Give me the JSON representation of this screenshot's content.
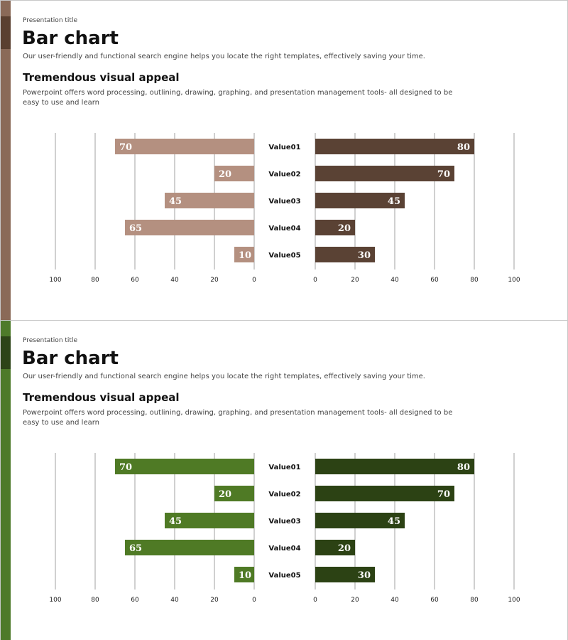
{
  "slides": [
    {
      "presentation_title": "Presentation title",
      "title": "Bar chart",
      "subtitle": "Our user-friendly and functional search engine helps you locate the right templates, effectively saving your time.",
      "heading": "Tremendous visual appeal",
      "body": "Powerpoint offers word processing, outlining, drawing, graphing, and presentation management tools- all designed to be easy to use and learn",
      "colors": {
        "stripe": "#8a6a58",
        "stripe_block": "#5a4030",
        "left_bar": "#b49080",
        "right_bar": "#5a4234"
      }
    },
    {
      "presentation_title": "Presentation title",
      "title": "Bar chart",
      "subtitle": "Our user-friendly and functional search engine helps you locate the right templates, effectively saving your time.",
      "heading": "Tremendous visual appeal",
      "body": "Powerpoint offers word processing, outlining, drawing, graphing, and presentation management tools- all designed to be easy to use and learn",
      "colors": {
        "stripe": "#4e7a2a",
        "stripe_block": "#2d4418",
        "left_bar": "#4f7a25",
        "right_bar": "#2c4214"
      }
    }
  ],
  "chart_data": [
    {
      "type": "bar",
      "orientation": "horizontal-butterfly",
      "categories": [
        "Value01",
        "Value02",
        "Value03",
        "Value04",
        "Value05"
      ],
      "series": [
        {
          "values": [
            70,
            20,
            45,
            65,
            10
          ]
        },
        {
          "values": [
            80,
            70,
            45,
            20,
            30
          ]
        }
      ],
      "xlim": [
        0,
        100
      ],
      "ticks": [
        "0",
        "20",
        "40",
        "60",
        "80",
        "100"
      ],
      "grid": true
    },
    {
      "type": "bar",
      "orientation": "horizontal-butterfly",
      "categories": [
        "Value01",
        "Value02",
        "Value03",
        "Value04",
        "Value05"
      ],
      "series": [
        {
          "values": [
            70,
            20,
            45,
            65,
            10
          ]
        },
        {
          "values": [
            80,
            70,
            45,
            20,
            30
          ]
        }
      ],
      "xlim": [
        0,
        100
      ],
      "ticks": [
        "0",
        "20",
        "40",
        "60",
        "80",
        "100"
      ],
      "grid": true
    }
  ]
}
